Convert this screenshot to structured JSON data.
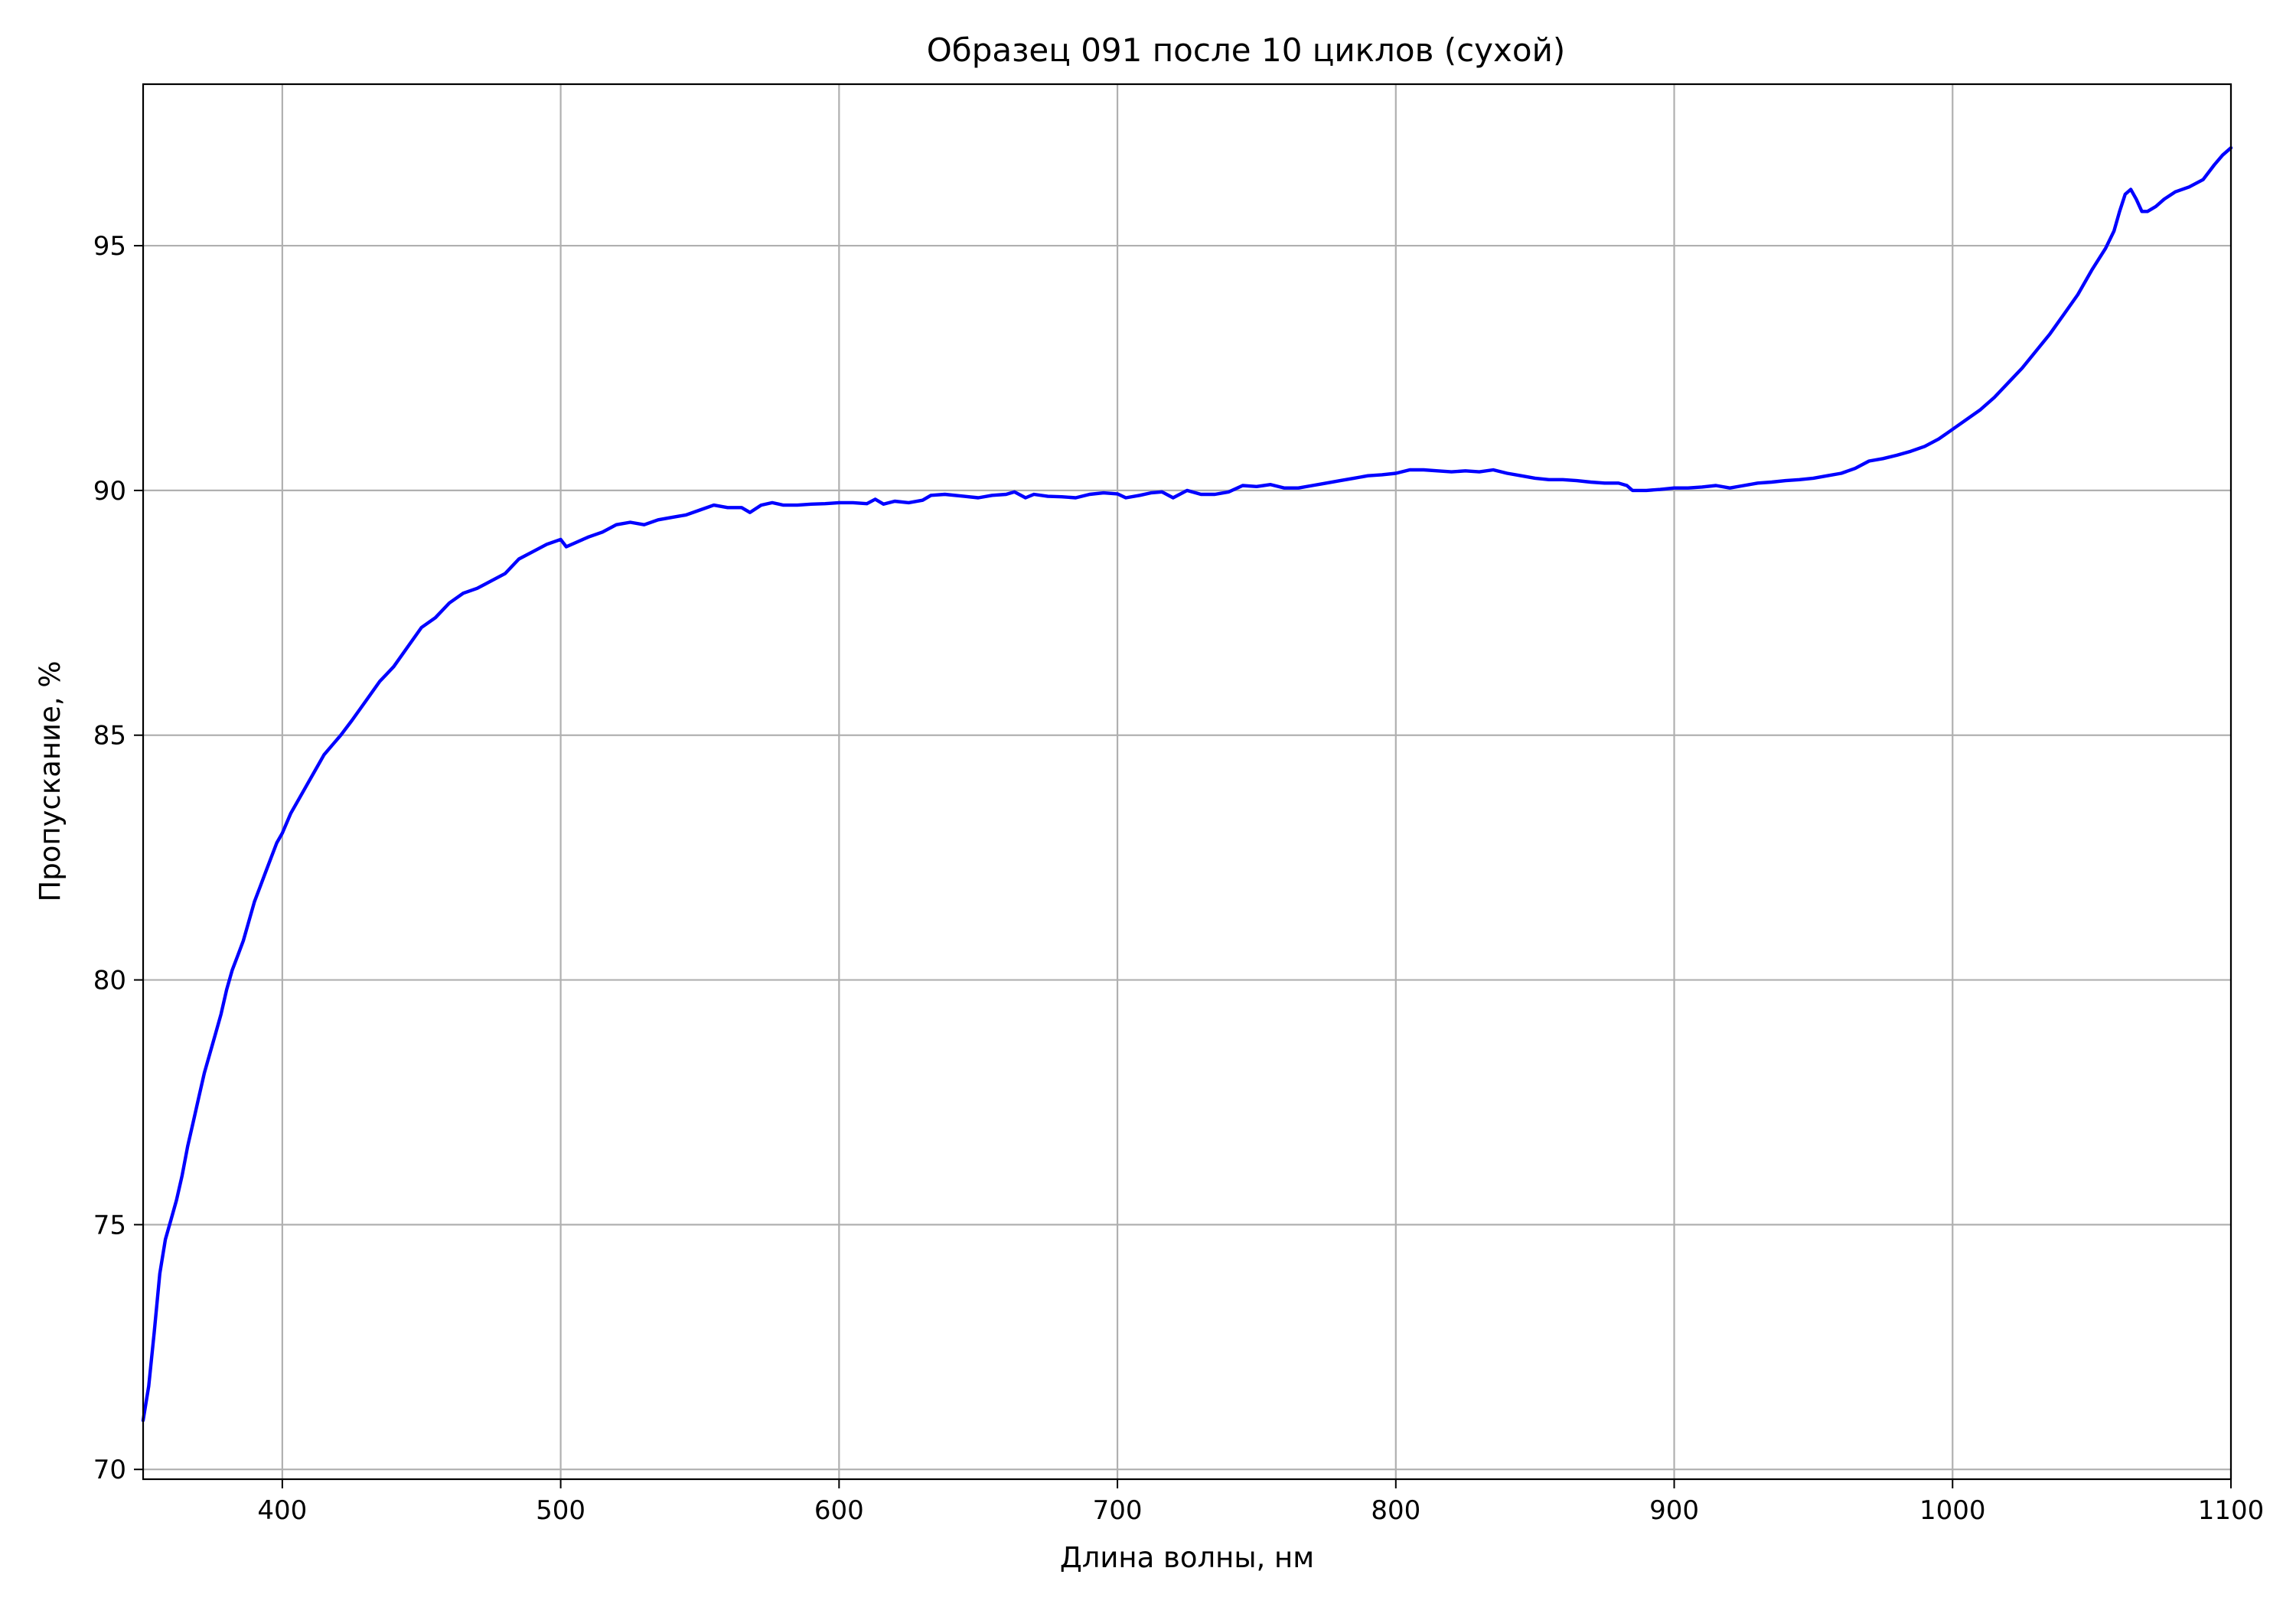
{
  "chart_data": {
    "type": "line",
    "title": "Образец 091 после 10 циклов (сухой)",
    "xlabel": "Длина волны, нм",
    "ylabel": "Пропускание, %",
    "xlim": [
      350,
      1100
    ],
    "ylim": [
      69.8,
      98.3
    ],
    "xticks": [
      400,
      500,
      600,
      700,
      800,
      900,
      1000,
      1100
    ],
    "yticks": [
      70,
      75,
      80,
      85,
      90,
      95
    ],
    "grid": true,
    "legend": "none",
    "colors": {
      "series": "#0000ff",
      "grid": "#b0b0b0",
      "frame": "#000000",
      "background": "#ffffff"
    },
    "series": [
      {
        "color": "#0000ff",
        "points": [
          [
            350,
            71.0
          ],
          [
            352,
            71.7
          ],
          [
            354,
            72.8
          ],
          [
            356,
            74.0
          ],
          [
            358,
            74.7
          ],
          [
            360,
            75.1
          ],
          [
            362,
            75.5
          ],
          [
            364,
            76.0
          ],
          [
            366,
            76.6
          ],
          [
            368,
            77.1
          ],
          [
            370,
            77.6
          ],
          [
            372,
            78.1
          ],
          [
            374,
            78.5
          ],
          [
            376,
            78.9
          ],
          [
            378,
            79.3
          ],
          [
            380,
            79.8
          ],
          [
            382,
            80.2
          ],
          [
            384,
            80.5
          ],
          [
            386,
            80.8
          ],
          [
            388,
            81.2
          ],
          [
            390,
            81.6
          ],
          [
            392,
            81.9
          ],
          [
            394,
            82.2
          ],
          [
            396,
            82.5
          ],
          [
            398,
            82.8
          ],
          [
            400,
            83.0
          ],
          [
            403,
            83.4
          ],
          [
            406,
            83.7
          ],
          [
            409,
            84.0
          ],
          [
            412,
            84.3
          ],
          [
            415,
            84.6
          ],
          [
            418,
            84.8
          ],
          [
            421,
            85.0
          ],
          [
            425,
            85.3
          ],
          [
            430,
            85.7
          ],
          [
            435,
            86.1
          ],
          [
            440,
            86.4
          ],
          [
            445,
            86.8
          ],
          [
            450,
            87.2
          ],
          [
            455,
            87.4
          ],
          [
            460,
            87.7
          ],
          [
            465,
            87.9
          ],
          [
            470,
            88.0
          ],
          [
            475,
            88.15
          ],
          [
            480,
            88.3
          ],
          [
            485,
            88.6
          ],
          [
            490,
            88.75
          ],
          [
            495,
            88.9
          ],
          [
            500,
            89.0
          ],
          [
            502,
            88.85
          ],
          [
            506,
            88.95
          ],
          [
            510,
            89.05
          ],
          [
            515,
            89.15
          ],
          [
            520,
            89.3
          ],
          [
            525,
            89.35
          ],
          [
            530,
            89.3
          ],
          [
            535,
            89.4
          ],
          [
            540,
            89.45
          ],
          [
            545,
            89.5
          ],
          [
            550,
            89.6
          ],
          [
            555,
            89.7
          ],
          [
            560,
            89.65
          ],
          [
            565,
            89.65
          ],
          [
            568,
            89.55
          ],
          [
            572,
            89.7
          ],
          [
            576,
            89.75
          ],
          [
            580,
            89.7
          ],
          [
            585,
            89.7
          ],
          [
            590,
            89.72
          ],
          [
            595,
            89.73
          ],
          [
            600,
            89.75
          ],
          [
            605,
            89.75
          ],
          [
            610,
            89.73
          ],
          [
            613,
            89.82
          ],
          [
            616,
            89.72
          ],
          [
            620,
            89.78
          ],
          [
            625,
            89.75
          ],
          [
            630,
            89.8
          ],
          [
            633,
            89.9
          ],
          [
            638,
            89.92
          ],
          [
            645,
            89.88
          ],
          [
            650,
            89.85
          ],
          [
            655,
            89.9
          ],
          [
            660,
            89.92
          ],
          [
            663,
            89.97
          ],
          [
            667,
            89.85
          ],
          [
            670,
            89.92
          ],
          [
            675,
            89.88
          ],
          [
            680,
            89.87
          ],
          [
            685,
            89.85
          ],
          [
            690,
            89.92
          ],
          [
            695,
            89.95
          ],
          [
            700,
            89.93
          ],
          [
            703,
            89.85
          ],
          [
            708,
            89.9
          ],
          [
            712,
            89.95
          ],
          [
            716,
            89.97
          ],
          [
            720,
            89.85
          ],
          [
            725,
            90.0
          ],
          [
            730,
            89.92
          ],
          [
            735,
            89.92
          ],
          [
            740,
            89.97
          ],
          [
            745,
            90.1
          ],
          [
            750,
            90.08
          ],
          [
            755,
            90.12
          ],
          [
            760,
            90.05
          ],
          [
            765,
            90.05
          ],
          [
            770,
            90.1
          ],
          [
            775,
            90.15
          ],
          [
            780,
            90.2
          ],
          [
            785,
            90.25
          ],
          [
            790,
            90.3
          ],
          [
            795,
            90.32
          ],
          [
            800,
            90.35
          ],
          [
            805,
            90.42
          ],
          [
            810,
            90.42
          ],
          [
            815,
            90.4
          ],
          [
            820,
            90.38
          ],
          [
            825,
            90.4
          ],
          [
            830,
            90.38
          ],
          [
            835,
            90.42
          ],
          [
            840,
            90.35
          ],
          [
            845,
            90.3
          ],
          [
            850,
            90.25
          ],
          [
            855,
            90.22
          ],
          [
            860,
            90.22
          ],
          [
            865,
            90.2
          ],
          [
            870,
            90.17
          ],
          [
            875,
            90.15
          ],
          [
            880,
            90.15
          ],
          [
            883,
            90.1
          ],
          [
            885,
            90.0
          ],
          [
            890,
            90.0
          ],
          [
            895,
            90.02
          ],
          [
            900,
            90.05
          ],
          [
            905,
            90.05
          ],
          [
            910,
            90.07
          ],
          [
            915,
            90.1
          ],
          [
            920,
            90.05
          ],
          [
            925,
            90.1
          ],
          [
            930,
            90.15
          ],
          [
            935,
            90.17
          ],
          [
            940,
            90.2
          ],
          [
            945,
            90.22
          ],
          [
            950,
            90.25
          ],
          [
            955,
            90.3
          ],
          [
            960,
            90.35
          ],
          [
            965,
            90.45
          ],
          [
            970,
            90.6
          ],
          [
            975,
            90.65
          ],
          [
            980,
            90.72
          ],
          [
            985,
            90.8
          ],
          [
            990,
            90.9
          ],
          [
            995,
            91.05
          ],
          [
            1000,
            91.25
          ],
          [
            1005,
            91.45
          ],
          [
            1010,
            91.65
          ],
          [
            1015,
            91.9
          ],
          [
            1020,
            92.2
          ],
          [
            1025,
            92.5
          ],
          [
            1030,
            92.85
          ],
          [
            1035,
            93.2
          ],
          [
            1040,
            93.6
          ],
          [
            1045,
            94.0
          ],
          [
            1050,
            94.5
          ],
          [
            1055,
            94.95
          ],
          [
            1058,
            95.3
          ],
          [
            1060,
            95.7
          ],
          [
            1062,
            96.05
          ],
          [
            1064,
            96.15
          ],
          [
            1066,
            95.95
          ],
          [
            1068,
            95.7
          ],
          [
            1070,
            95.7
          ],
          [
            1073,
            95.8
          ],
          [
            1076,
            95.95
          ],
          [
            1080,
            96.1
          ],
          [
            1085,
            96.2
          ],
          [
            1090,
            96.35
          ],
          [
            1094,
            96.65
          ],
          [
            1097,
            96.85
          ],
          [
            1100,
            97.0
          ]
        ]
      }
    ]
  }
}
